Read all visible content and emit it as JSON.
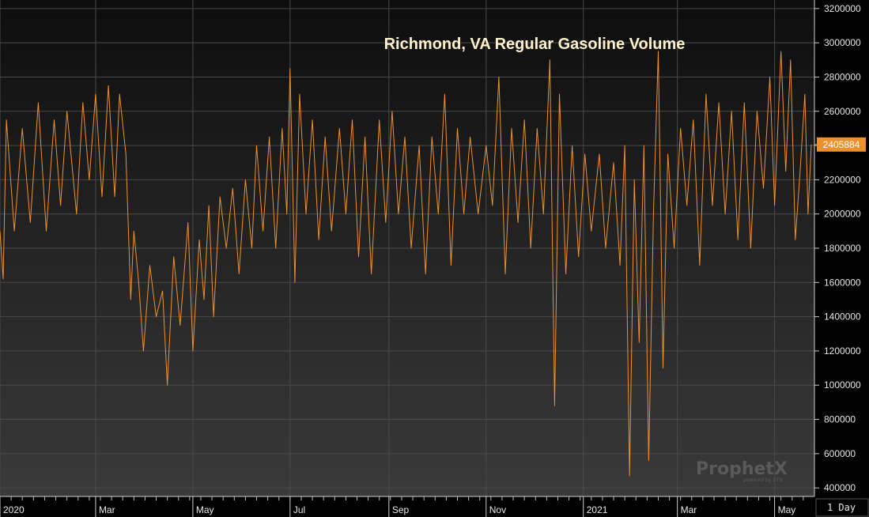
{
  "chart_data": {
    "type": "line",
    "title": "Richmond, VA Regular Gasoline Volume",
    "xlabel": "",
    "ylabel": "",
    "series": [
      {
        "name": "",
        "color": "#f0902a"
      }
    ],
    "x_ticks": [
      "2020",
      "Mar",
      "May",
      "Jul",
      "Sep",
      "Nov",
      "2021",
      "Mar",
      "May"
    ],
    "y_ticks": [
      "400000",
      "600000",
      "800000",
      "1000000",
      "1200000",
      "1400000",
      "1600000",
      "1800000",
      "2000000",
      "2200000",
      "2400000",
      "2600000",
      "2800000",
      "3000000",
      "3200000"
    ],
    "ylim": [
      350000,
      3250000
    ],
    "xlim": [
      "2020-01-01",
      "2021-05-26"
    ],
    "last_value": "2405884",
    "last_value_color": "#f0902a",
    "interval_label": "1 Day",
    "grid": true,
    "background": "gradient-dark",
    "points": [
      [
        "2020-01-01",
        1900000
      ],
      [
        "2020-01-03",
        1620000
      ],
      [
        "2020-01-05",
        2550000
      ],
      [
        "2020-01-10",
        1900000
      ],
      [
        "2020-01-15",
        2500000
      ],
      [
        "2020-01-20",
        1950000
      ],
      [
        "2020-01-25",
        2650000
      ],
      [
        "2020-01-30",
        1900000
      ],
      [
        "2020-02-04",
        2550000
      ],
      [
        "2020-02-08",
        2050000
      ],
      [
        "2020-02-12",
        2600000
      ],
      [
        "2020-02-18",
        2000000
      ],
      [
        "2020-02-22",
        2650000
      ],
      [
        "2020-02-26",
        2200000
      ],
      [
        "2020-03-01",
        2700000
      ],
      [
        "2020-03-05",
        2100000
      ],
      [
        "2020-03-09",
        2750000
      ],
      [
        "2020-03-13",
        2100000
      ],
      [
        "2020-03-16",
        2700000
      ],
      [
        "2020-03-20",
        2350000
      ],
      [
        "2020-03-23",
        1500000
      ],
      [
        "2020-03-25",
        1900000
      ],
      [
        "2020-03-28",
        1600000
      ],
      [
        "2020-03-31",
        1200000
      ],
      [
        "2020-04-04",
        1700000
      ],
      [
        "2020-04-08",
        1400000
      ],
      [
        "2020-04-12",
        1550000
      ],
      [
        "2020-04-15",
        1000000
      ],
      [
        "2020-04-19",
        1750000
      ],
      [
        "2020-04-23",
        1350000
      ],
      [
        "2020-04-28",
        1950000
      ],
      [
        "2020-05-01",
        1200000
      ],
      [
        "2020-05-05",
        1850000
      ],
      [
        "2020-05-08",
        1500000
      ],
      [
        "2020-05-11",
        2050000
      ],
      [
        "2020-05-14",
        1400000
      ],
      [
        "2020-05-18",
        2100000
      ],
      [
        "2020-05-22",
        1800000
      ],
      [
        "2020-05-26",
        2150000
      ],
      [
        "2020-05-30",
        1650000
      ],
      [
        "2020-06-03",
        2200000
      ],
      [
        "2020-06-07",
        1800000
      ],
      [
        "2020-06-10",
        2400000
      ],
      [
        "2020-06-14",
        1900000
      ],
      [
        "2020-06-18",
        2450000
      ],
      [
        "2020-06-22",
        1800000
      ],
      [
        "2020-06-26",
        2500000
      ],
      [
        "2020-06-29",
        2000000
      ],
      [
        "2020-07-01",
        2850000
      ],
      [
        "2020-07-04",
        1600000
      ],
      [
        "2020-07-07",
        2700000
      ],
      [
        "2020-07-11",
        2000000
      ],
      [
        "2020-07-15",
        2550000
      ],
      [
        "2020-07-19",
        1850000
      ],
      [
        "2020-07-23",
        2450000
      ],
      [
        "2020-07-27",
        1900000
      ],
      [
        "2020-08-01",
        2500000
      ],
      [
        "2020-08-05",
        2000000
      ],
      [
        "2020-08-09",
        2550000
      ],
      [
        "2020-08-13",
        1750000
      ],
      [
        "2020-08-17",
        2450000
      ],
      [
        "2020-08-21",
        1650000
      ],
      [
        "2020-08-26",
        2550000
      ],
      [
        "2020-08-30",
        1950000
      ],
      [
        "2020-09-03",
        2600000
      ],
      [
        "2020-09-07",
        2000000
      ],
      [
        "2020-09-11",
        2450000
      ],
      [
        "2020-09-15",
        1800000
      ],
      [
        "2020-09-20",
        2400000
      ],
      [
        "2020-09-24",
        1650000
      ],
      [
        "2020-09-28",
        2450000
      ],
      [
        "2020-10-02",
        2000000
      ],
      [
        "2020-10-06",
        2700000
      ],
      [
        "2020-10-10",
        1700000
      ],
      [
        "2020-10-14",
        2500000
      ],
      [
        "2020-10-18",
        2000000
      ],
      [
        "2020-10-22",
        2450000
      ],
      [
        "2020-10-27",
        2000000
      ],
      [
        "2020-11-01",
        2400000
      ],
      [
        "2020-11-05",
        2050000
      ],
      [
        "2020-11-09",
        2800000
      ],
      [
        "2020-11-13",
        1650000
      ],
      [
        "2020-11-17",
        2500000
      ],
      [
        "2020-11-21",
        1950000
      ],
      [
        "2020-11-25",
        2550000
      ],
      [
        "2020-11-29",
        1800000
      ],
      [
        "2020-12-03",
        2500000
      ],
      [
        "2020-12-07",
        2000000
      ],
      [
        "2020-12-11",
        2900000
      ],
      [
        "2020-12-14",
        880000
      ],
      [
        "2020-12-17",
        2700000
      ],
      [
        "2020-12-21",
        1650000
      ],
      [
        "2020-12-25",
        2400000
      ],
      [
        "2020-12-29",
        1750000
      ],
      [
        "2021-01-02",
        2350000
      ],
      [
        "2021-01-06",
        1900000
      ],
      [
        "2021-01-11",
        2350000
      ],
      [
        "2021-01-15",
        1800000
      ],
      [
        "2021-01-20",
        2300000
      ],
      [
        "2021-01-24",
        1700000
      ],
      [
        "2021-01-27",
        2400000
      ],
      [
        "2021-01-30",
        470000
      ],
      [
        "2021-02-02",
        2200000
      ],
      [
        "2021-02-05",
        1250000
      ],
      [
        "2021-02-08",
        2400000
      ],
      [
        "2021-02-11",
        560000
      ],
      [
        "2021-02-14",
        2000000
      ],
      [
        "2021-02-17",
        2950000
      ],
      [
        "2021-02-20",
        1100000
      ],
      [
        "2021-02-23",
        2350000
      ],
      [
        "2021-02-27",
        1800000
      ],
      [
        "2021-03-03",
        2500000
      ],
      [
        "2021-03-07",
        2050000
      ],
      [
        "2021-03-11",
        2550000
      ],
      [
        "2021-03-15",
        1700000
      ],
      [
        "2021-03-19",
        2700000
      ],
      [
        "2021-03-23",
        2050000
      ],
      [
        "2021-03-27",
        2650000
      ],
      [
        "2021-03-31",
        2000000
      ],
      [
        "2021-04-04",
        2600000
      ],
      [
        "2021-04-08",
        1850000
      ],
      [
        "2021-04-12",
        2650000
      ],
      [
        "2021-04-16",
        1800000
      ],
      [
        "2021-04-20",
        2600000
      ],
      [
        "2021-04-24",
        2150000
      ],
      [
        "2021-04-28",
        2800000
      ],
      [
        "2021-05-01",
        2050000
      ],
      [
        "2021-05-05",
        2950000
      ],
      [
        "2021-05-08",
        2250000
      ],
      [
        "2021-05-11",
        2900000
      ],
      [
        "2021-05-14",
        1850000
      ],
      [
        "2021-05-17",
        2250000
      ],
      [
        "2021-05-20",
        2700000
      ],
      [
        "2021-05-22",
        2000000
      ],
      [
        "2021-05-24",
        2405884
      ]
    ]
  },
  "branding": {
    "name": "ProphetX",
    "sub": "powered by DTN"
  }
}
